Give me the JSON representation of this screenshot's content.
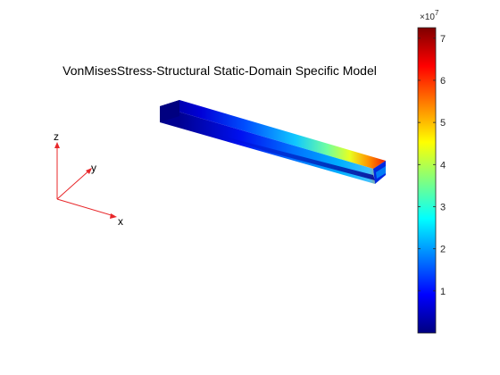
{
  "plot": {
    "title": "VonMisesStress-Structural Static-Domain Specific Model"
  },
  "triad": {
    "x_label": "x",
    "y_label": "y",
    "z_label": "z",
    "axis_color": "#e8272a"
  },
  "colorbar": {
    "colormap": "jet",
    "colors": [
      "#00007f",
      "#0000ff",
      "#0080ff",
      "#00ffff",
      "#80ff80",
      "#ffff00",
      "#ff8000",
      "#ff0000",
      "#7f0000"
    ],
    "multiplier_base": "×10",
    "multiplier_exponent": "7",
    "range": [
      0,
      7.25
    ],
    "ticks": [
      "1",
      "2",
      "3",
      "4",
      "5",
      "6",
      "7"
    ],
    "tick_values": [
      1,
      2,
      3,
      4,
      5,
      6,
      7
    ]
  }
}
